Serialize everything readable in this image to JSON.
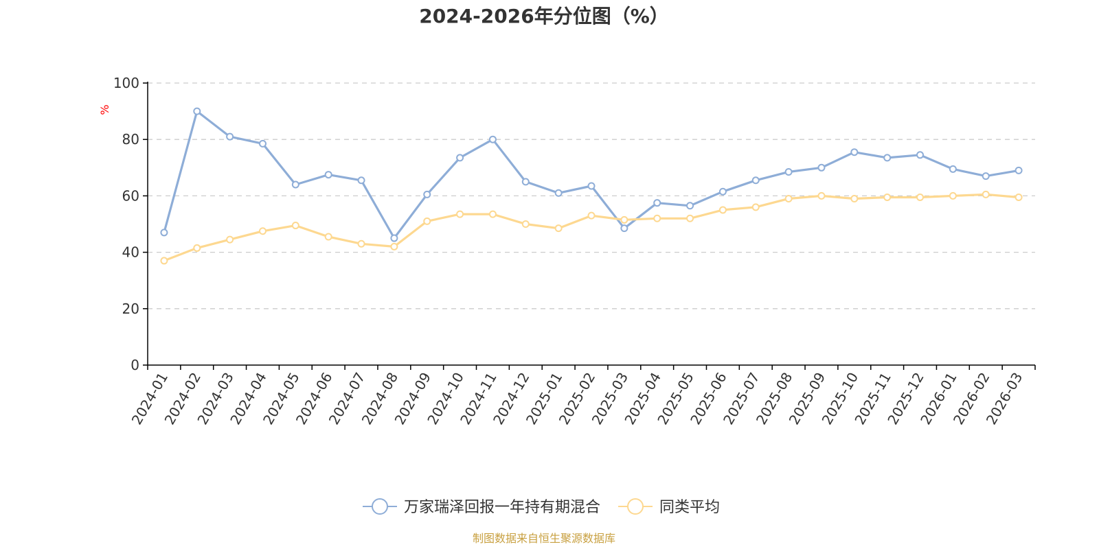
{
  "chart_data": {
    "type": "line",
    "title": "2024-2026年分位图（%）",
    "ylabel": "%",
    "xlabel": "",
    "ylim": [
      0,
      100
    ],
    "yticks": [
      0,
      20,
      40,
      60,
      80,
      100
    ],
    "grid": true,
    "legend_position": "bottom-center",
    "categories": [
      "2024-01",
      "2024-02",
      "2024-03",
      "2024-04",
      "2024-05",
      "2024-06",
      "2024-07",
      "2024-08",
      "2024-09",
      "2024-10",
      "2024-11",
      "2024-12",
      "2025-01",
      "2025-02",
      "2025-03",
      "2025-04",
      "2025-05",
      "2025-06",
      "2025-07",
      "2025-08",
      "2025-09",
      "2025-10",
      "2025-11",
      "2025-12",
      "2026-01",
      "2026-02",
      "2026-03"
    ],
    "series": [
      {
        "name": "万家瑞泽回报一年持有期混合",
        "color": "#8eadd7",
        "values": [
          47,
          90,
          81,
          78.5,
          64,
          67.5,
          65.5,
          45,
          60.5,
          73.5,
          80,
          65,
          61,
          63.5,
          48.5,
          57.5,
          56.5,
          61.5,
          65.5,
          68.5,
          70,
          75.5,
          73.5,
          74.5,
          69.5,
          67,
          69
        ]
      },
      {
        "name": "同类平均",
        "color": "#fdd890",
        "values": [
          37,
          41.5,
          44.5,
          47.5,
          49.5,
          45.5,
          43,
          42,
          51,
          53.5,
          53.5,
          50,
          48.5,
          53,
          51.5,
          52,
          52,
          55,
          56,
          59,
          60,
          59,
          59.5,
          59.5,
          60,
          60.5,
          59.5
        ]
      }
    ],
    "source": "制图数据来自恒生聚源数据库",
    "source_color": "#c8a040",
    "unit_color": "#ff0000"
  }
}
